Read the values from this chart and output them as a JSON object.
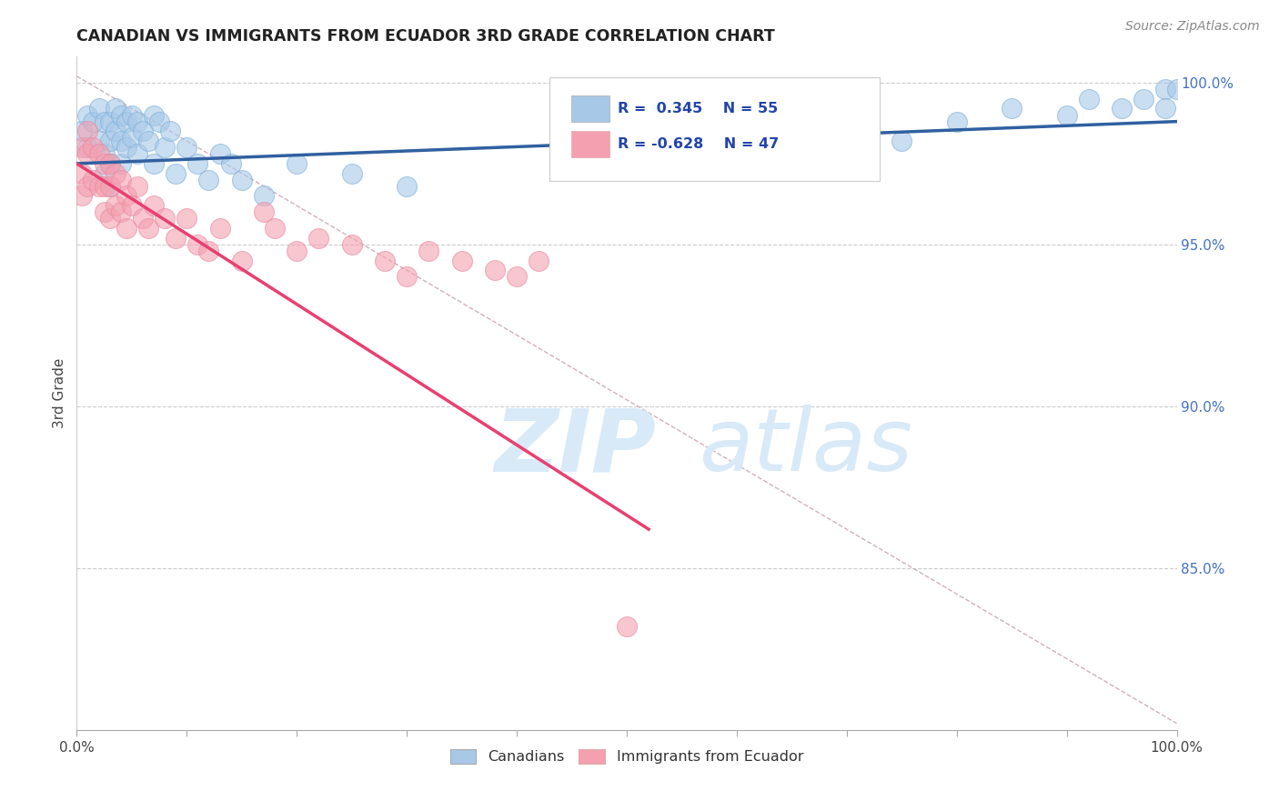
{
  "title": "CANADIAN VS IMMIGRANTS FROM ECUADOR 3RD GRADE CORRELATION CHART",
  "source_text": "Source: ZipAtlas.com",
  "ylabel": "3rd Grade",
  "xmin": 0.0,
  "xmax": 1.0,
  "ymin": 0.8,
  "ymax": 1.008,
  "right_yticks": [
    0.85,
    0.9,
    0.95,
    1.0
  ],
  "right_yticklabels": [
    "85.0%",
    "90.0%",
    "95.0%",
    "100.0%"
  ],
  "bottom_xtick_labels": [
    "0.0%",
    "100.0%"
  ],
  "legend_R1": "R =  0.345",
  "legend_N1": "N = 55",
  "legend_R2": "R = -0.628",
  "legend_N2": "N = 47",
  "blue_color": "#a8c8e8",
  "pink_color": "#f4a0b0",
  "blue_line_color": "#3060a0",
  "pink_line_color": "#e84070",
  "ref_line_color": "#d0b0c0",
  "watermark_color": "#d8eaf8",
  "grid_color": "#cccccc",
  "blue_scatter_x": [
    0.005,
    0.01,
    0.01,
    0.015,
    0.02,
    0.02,
    0.025,
    0.025,
    0.025,
    0.03,
    0.03,
    0.03,
    0.03,
    0.035,
    0.035,
    0.04,
    0.04,
    0.04,
    0.045,
    0.045,
    0.05,
    0.05,
    0.055,
    0.055,
    0.06,
    0.065,
    0.07,
    0.07,
    0.075,
    0.08,
    0.085,
    0.09,
    0.1,
    0.11,
    0.12,
    0.13,
    0.14,
    0.15,
    0.17,
    0.2,
    0.25,
    0.3,
    0.5,
    0.55,
    0.65,
    0.75,
    0.8,
    0.85,
    0.9,
    0.92,
    0.95,
    0.97,
    0.99,
    0.99,
    1.0
  ],
  "blue_scatter_y": [
    0.985,
    0.99,
    0.98,
    0.988,
    0.992,
    0.982,
    0.988,
    0.978,
    0.972,
    0.988,
    0.982,
    0.975,
    0.968,
    0.992,
    0.985,
    0.99,
    0.982,
    0.975,
    0.988,
    0.98,
    0.99,
    0.983,
    0.988,
    0.978,
    0.985,
    0.982,
    0.99,
    0.975,
    0.988,
    0.98,
    0.985,
    0.972,
    0.98,
    0.975,
    0.97,
    0.978,
    0.975,
    0.97,
    0.965,
    0.975,
    0.972,
    0.968,
    0.98,
    0.975,
    0.985,
    0.982,
    0.988,
    0.992,
    0.99,
    0.995,
    0.992,
    0.995,
    0.998,
    0.992,
    0.998
  ],
  "pink_scatter_x": [
    0.005,
    0.005,
    0.005,
    0.01,
    0.01,
    0.01,
    0.015,
    0.015,
    0.02,
    0.02,
    0.025,
    0.025,
    0.025,
    0.03,
    0.03,
    0.03,
    0.035,
    0.035,
    0.04,
    0.04,
    0.045,
    0.045,
    0.05,
    0.055,
    0.06,
    0.065,
    0.07,
    0.08,
    0.09,
    0.1,
    0.11,
    0.12,
    0.13,
    0.15,
    0.17,
    0.18,
    0.2,
    0.22,
    0.25,
    0.28,
    0.3,
    0.32,
    0.35,
    0.38,
    0.4,
    0.42,
    0.5
  ],
  "pink_scatter_y": [
    0.98,
    0.972,
    0.965,
    0.985,
    0.978,
    0.968,
    0.98,
    0.97,
    0.978,
    0.968,
    0.975,
    0.968,
    0.96,
    0.975,
    0.968,
    0.958,
    0.972,
    0.962,
    0.97,
    0.96,
    0.965,
    0.955,
    0.962,
    0.968,
    0.958,
    0.955,
    0.962,
    0.958,
    0.952,
    0.958,
    0.95,
    0.948,
    0.955,
    0.945,
    0.96,
    0.955,
    0.948,
    0.952,
    0.95,
    0.945,
    0.94,
    0.948,
    0.945,
    0.942,
    0.94,
    0.945,
    0.832
  ],
  "blue_line_x0": 0.0,
  "blue_line_y0": 0.975,
  "blue_line_x1": 1.0,
  "blue_line_y1": 0.988,
  "pink_line_x0": 0.0,
  "pink_line_y0": 0.975,
  "pink_line_x1": 0.52,
  "pink_line_y1": 0.862,
  "ref_line_x0": 0.0,
  "ref_line_y0": 1.002,
  "ref_line_x1": 1.0,
  "ref_line_y1": 0.802
}
